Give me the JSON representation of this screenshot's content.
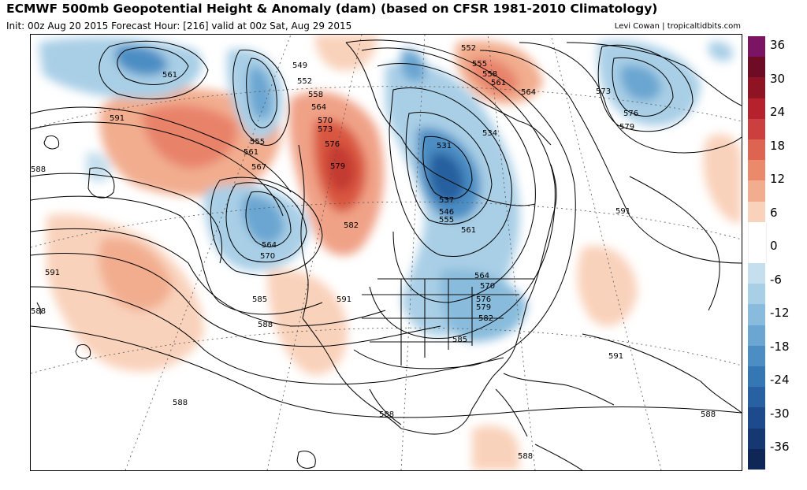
{
  "header": {
    "title": "ECMWF 500mb Geopotential Height & Anomaly (dam) (based on CFSR 1981-2010 Climatology)",
    "subtitle": "Init: 00z Aug 20 2015   Forecast Hour: [216]   valid at 00z Sat, Aug 29 2015",
    "credit": "Levi Cowan | tropicaltidbits.com"
  },
  "colorbar": {
    "labels": [
      "36",
      "30",
      "24",
      "18",
      "12",
      "6",
      "0",
      "-6",
      "-12",
      "-18",
      "-24",
      "-30",
      "-36"
    ],
    "colors": [
      "#7a1463",
      "#6e0b25",
      "#8e1424",
      "#b5222e",
      "#cc3f3f",
      "#dc6450",
      "#ea8a6a",
      "#f2ad8f",
      "#f9d2bb",
      "#ffffff",
      "#ffffff",
      "#c6dfee",
      "#a9cfe6",
      "#89bcdc",
      "#6aa6d1",
      "#4c8ec4",
      "#3577b5",
      "#2760a3",
      "#1d4a8c",
      "#153772",
      "#0f2757"
    ]
  },
  "contour_labels": [
    {
      "text": "561",
      "id": "c1"
    },
    {
      "text": "549",
      "id": "c2"
    },
    {
      "text": "552",
      "id": "c3"
    },
    {
      "text": "558",
      "id": "c4"
    },
    {
      "text": "564",
      "id": "c5"
    },
    {
      "text": "570",
      "id": "c6"
    },
    {
      "text": "573",
      "id": "c7"
    },
    {
      "text": "576",
      "id": "c8"
    },
    {
      "text": "579",
      "id": "c9"
    },
    {
      "text": "582",
      "id": "c10"
    },
    {
      "text": "591",
      "id": "c11"
    },
    {
      "text": "555",
      "id": "c12"
    },
    {
      "text": "561",
      "id": "c13"
    },
    {
      "text": "567",
      "id": "c14"
    },
    {
      "text": "588",
      "id": "c15"
    },
    {
      "text": "564",
      "id": "c16"
    },
    {
      "text": "570",
      "id": "c17"
    },
    {
      "text": "585",
      "id": "c18"
    },
    {
      "text": "588",
      "id": "c19"
    },
    {
      "text": "591",
      "id": "c20"
    },
    {
      "text": "591",
      "id": "c21"
    },
    {
      "text": "588",
      "id": "c22"
    },
    {
      "text": "588",
      "id": "c23"
    },
    {
      "text": "552",
      "id": "c24"
    },
    {
      "text": "555",
      "id": "c25"
    },
    {
      "text": "558",
      "id": "c26"
    },
    {
      "text": "561",
      "id": "c27"
    },
    {
      "text": "564",
      "id": "c28"
    },
    {
      "text": "573",
      "id": "c29"
    },
    {
      "text": "576",
      "id": "c30"
    },
    {
      "text": "579",
      "id": "c31"
    },
    {
      "text": "534",
      "id": "c32"
    },
    {
      "text": "531",
      "id": "c33"
    },
    {
      "text": "537",
      "id": "c34"
    },
    {
      "text": "546",
      "id": "c35"
    },
    {
      "text": "555",
      "id": "c36"
    },
    {
      "text": "561",
      "id": "c37"
    },
    {
      "text": "591",
      "id": "c38"
    },
    {
      "text": "564",
      "id": "c39"
    },
    {
      "text": "570",
      "id": "c40"
    },
    {
      "text": "576",
      "id": "c41"
    },
    {
      "text": "579",
      "id": "c42"
    },
    {
      "text": "582",
      "id": "c43"
    },
    {
      "text": "585",
      "id": "c44"
    },
    {
      "text": "591",
      "id": "c45"
    },
    {
      "text": "588",
      "id": "c46"
    },
    {
      "text": "588",
      "id": "c47"
    },
    {
      "text": "588",
      "id": "c48"
    }
  ]
}
